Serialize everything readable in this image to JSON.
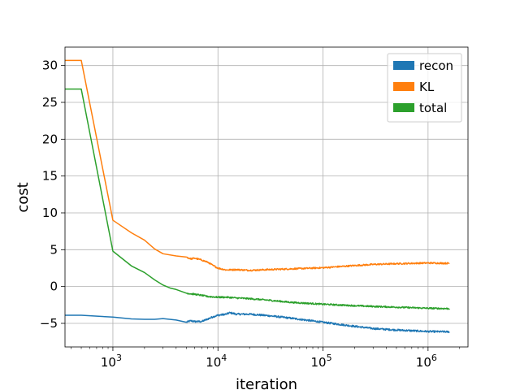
{
  "chart_data": {
    "type": "line",
    "xlabel": "iteration",
    "ylabel": "cost",
    "xscale": "log",
    "xlim": [
      350,
      2400000
    ],
    "ylim": [
      -8.2,
      32.5
    ],
    "grid": true,
    "legend_position": "top-right",
    "x_ticks": [
      {
        "value": 1000,
        "base": "10",
        "exp": "3"
      },
      {
        "value": 10000,
        "base": "10",
        "exp": "4"
      },
      {
        "value": 100000,
        "base": "10",
        "exp": "5"
      },
      {
        "value": 1000000,
        "base": "10",
        "exp": "6"
      }
    ],
    "y_ticks": [
      {
        "value": 30,
        "label": "30"
      },
      {
        "value": 25,
        "label": "25"
      },
      {
        "value": 20,
        "label": "20"
      },
      {
        "value": 15,
        "label": "15"
      },
      {
        "value": 10,
        "label": "10"
      },
      {
        "value": 5,
        "label": "5"
      },
      {
        "value": 0,
        "label": "0"
      },
      {
        "value": -5,
        "label": "−5"
      }
    ],
    "series": [
      {
        "name": "recon",
        "color": "#1f77b4",
        "noise": 0.12,
        "x": [
          350,
          500,
          1000,
          1500,
          2000,
          2500,
          3000,
          4000,
          5000,
          5500,
          6000,
          7000,
          8000,
          9000,
          10000,
          12000,
          13000,
          15000,
          20000,
          30000,
          50000,
          100000,
          200000,
          300000,
          500000,
          1000000,
          1600000
        ],
        "y": [
          -3.9,
          -3.9,
          -4.15,
          -4.4,
          -4.45,
          -4.45,
          -4.35,
          -4.55,
          -4.85,
          -4.65,
          -4.75,
          -4.75,
          -4.4,
          -4.1,
          -3.9,
          -3.75,
          -3.55,
          -3.75,
          -3.75,
          -3.95,
          -4.3,
          -4.85,
          -5.4,
          -5.7,
          -5.9,
          -6.1,
          -6.15
        ]
      },
      {
        "name": "KL",
        "color": "#ff7f0e",
        "noise": 0.1,
        "x": [
          350,
          500,
          1000,
          1500,
          2000,
          2500,
          3000,
          4000,
          5000,
          5500,
          6000,
          7000,
          8000,
          9000,
          10000,
          12000,
          15000,
          20000,
          30000,
          50000,
          100000,
          200000,
          300000,
          500000,
          1000000,
          1600000
        ],
        "y": [
          30.7,
          30.7,
          9.0,
          7.3,
          6.3,
          5.1,
          4.45,
          4.15,
          4.0,
          3.75,
          3.85,
          3.6,
          3.3,
          2.85,
          2.5,
          2.25,
          2.3,
          2.2,
          2.3,
          2.4,
          2.55,
          2.85,
          3.0,
          3.1,
          3.2,
          3.15
        ]
      },
      {
        "name": "total",
        "color": "#2ca02c",
        "noise": 0.1,
        "x": [
          350,
          500,
          1000,
          1500,
          2000,
          2500,
          3000,
          3500,
          4000,
          5000,
          6000,
          7000,
          8000,
          10000,
          12000,
          15000,
          20000,
          30000,
          50000,
          100000,
          200000,
          300000,
          500000,
          1000000,
          1600000
        ],
        "y": [
          26.8,
          26.8,
          4.8,
          2.8,
          1.9,
          0.9,
          0.2,
          -0.2,
          -0.4,
          -0.9,
          -1.05,
          -1.2,
          -1.35,
          -1.45,
          -1.45,
          -1.55,
          -1.65,
          -1.85,
          -2.15,
          -2.4,
          -2.6,
          -2.7,
          -2.8,
          -2.95,
          -3.0
        ]
      }
    ]
  }
}
